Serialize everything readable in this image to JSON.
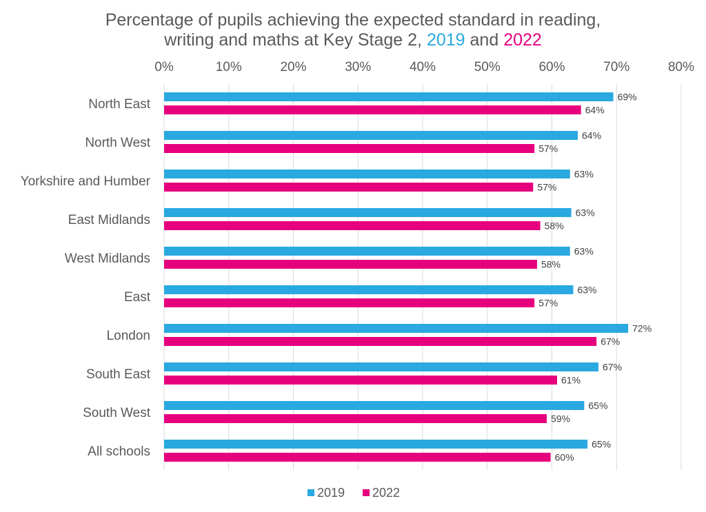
{
  "chart_data": {
    "type": "bar",
    "orientation": "horizontal",
    "title_line1": "Percentage of pupils achieving the expected standard in reading,",
    "title_line2_prefix": "writing and maths at Key Stage 2, ",
    "title_year1": "2019",
    "title_and": " and ",
    "title_year2": "2022",
    "categories": [
      "North East",
      "North West",
      "Yorkshire and Humber",
      "East Midlands",
      "West Midlands",
      "East",
      "London",
      "South East",
      "South West",
      "All schools"
    ],
    "series": [
      {
        "name": "2019",
        "color": "#2AA9E0",
        "values": [
          69.5,
          64,
          62.8,
          63,
          62.8,
          63.3,
          71.8,
          67.2,
          65,
          65.5
        ],
        "labels": [
          "69%",
          "64%",
          "63%",
          "63%",
          "63%",
          "63%",
          "72%",
          "67%",
          "65%",
          "65%"
        ]
      },
      {
        "name": "2022",
        "color": "#E6007E",
        "values": [
          64.5,
          57.3,
          57.1,
          58.2,
          57.7,
          57.3,
          66.9,
          60.8,
          59.2,
          59.8
        ],
        "labels": [
          "64%",
          "57%",
          "57%",
          "58%",
          "58%",
          "57%",
          "67%",
          "61%",
          "59%",
          "60%"
        ]
      }
    ],
    "xlim": [
      0,
      80
    ],
    "xticks": [
      "0%",
      "10%",
      "20%",
      "30%",
      "40%",
      "50%",
      "60%",
      "70%",
      "80%"
    ],
    "xaxis_position": "top",
    "grid": true,
    "legend_position": "bottom"
  }
}
